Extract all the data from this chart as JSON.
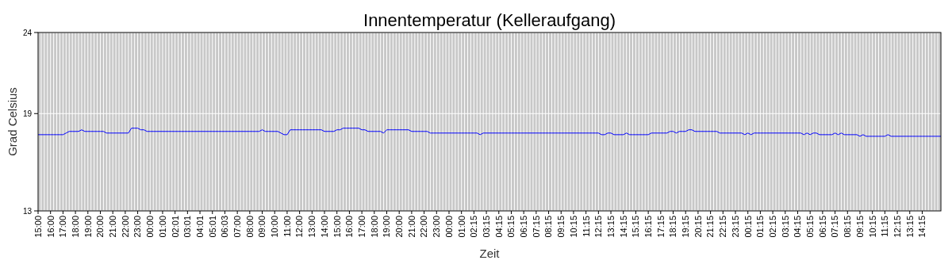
{
  "chart_data": {
    "type": "line",
    "title": "Innentemperatur (Kelleraufgang)",
    "xlabel": "Zeit",
    "ylabel": "Grad Celsius",
    "ylim": [
      13,
      24
    ],
    "yticks": [
      13,
      19,
      24
    ],
    "categories": [
      "15:00",
      null,
      null,
      null,
      "16:00",
      null,
      null,
      null,
      "17:00",
      null,
      null,
      null,
      "18:00",
      null,
      null,
      null,
      "19:00",
      null,
      null,
      null,
      "20:00",
      null,
      null,
      null,
      "21:00",
      null,
      null,
      null,
      "22:00",
      null,
      null,
      null,
      "23:00",
      null,
      null,
      null,
      "00:00",
      null,
      null,
      null,
      "01:00",
      null,
      null,
      null,
      "02:01",
      null,
      null,
      null,
      "03:01",
      null,
      null,
      null,
      "04:01",
      null,
      null,
      null,
      "05:01",
      null,
      null,
      null,
      "06:03",
      null,
      null,
      null,
      "07:00",
      null,
      null,
      null,
      "08:00",
      null,
      null,
      null,
      "09:00",
      null,
      null,
      null,
      "10:00",
      null,
      null,
      null,
      "11:00",
      null,
      null,
      null,
      "12:00",
      null,
      null,
      null,
      "13:00",
      null,
      null,
      null,
      "14:00",
      null,
      null,
      null,
      "15:00",
      null,
      null,
      null,
      "16:00",
      null,
      null,
      null,
      "17:00",
      null,
      null,
      null,
      "18:00",
      null,
      null,
      null,
      "19:00",
      null,
      null,
      null,
      "20:00",
      null,
      null,
      null,
      "21:00",
      null,
      null,
      null,
      "22:00",
      null,
      null,
      null,
      "23:00",
      null,
      null,
      null,
      "00:00",
      null,
      null,
      null,
      "01:00",
      null,
      null,
      null,
      "02:15",
      null,
      null,
      null,
      "03:15",
      null,
      null,
      null,
      "04:15",
      null,
      null,
      null,
      "05:15",
      null,
      null,
      null,
      "06:15",
      null,
      null,
      null,
      "07:15",
      null,
      null,
      null,
      "08:15",
      null,
      null,
      null,
      "09:15",
      null,
      null,
      null,
      "10:15",
      null,
      null,
      null,
      "11:15",
      null,
      null,
      null,
      "12:15",
      null,
      null,
      null,
      "13:15",
      null,
      null,
      null,
      "14:15",
      null,
      null,
      null,
      "15:15",
      null,
      null,
      null,
      "16:15",
      null,
      null,
      null,
      "17:15",
      null,
      null,
      null,
      "18:15",
      null,
      null,
      null,
      "19:15",
      null,
      null,
      null,
      "20:15",
      null,
      null,
      null,
      "21:15",
      null,
      null,
      null,
      "22:15",
      null,
      null,
      null,
      "23:15",
      null,
      null,
      null,
      "00:15",
      null,
      null,
      null,
      "01:15",
      null,
      null,
      null,
      "02:15",
      null,
      null,
      null,
      "03:15",
      null,
      null,
      null,
      "04:15",
      null,
      null,
      null,
      "05:15",
      null,
      null,
      null,
      "06:15",
      null,
      null,
      null,
      "07:15",
      null,
      null,
      null,
      "08:15",
      null,
      null,
      null,
      "09:15",
      null,
      null,
      null,
      "10:15",
      null,
      null,
      null,
      "11:15",
      null,
      null,
      null,
      "12:15",
      null,
      null,
      null,
      "13:15",
      null,
      null,
      null,
      "14:15",
      null,
      null,
      null,
      null,
      null,
      null
    ],
    "grid": true,
    "marker": "none",
    "line_style": "solid",
    "series": [
      {
        "color": "#0000ff",
        "values": [
          17.7,
          17.7,
          17.7,
          17.7,
          17.7,
          17.7,
          17.7,
          17.7,
          17.7,
          17.8,
          17.9,
          17.9,
          17.9,
          17.9,
          18.0,
          17.9,
          17.9,
          17.9,
          17.9,
          17.9,
          17.9,
          17.9,
          17.8,
          17.8,
          17.8,
          17.8,
          17.8,
          17.8,
          17.8,
          17.8,
          18.1,
          18.1,
          18.1,
          18.0,
          18.0,
          17.9,
          17.9,
          17.9,
          17.9,
          17.9,
          17.9,
          17.9,
          17.9,
          17.9,
          17.9,
          17.9,
          17.9,
          17.9,
          17.9,
          17.9,
          17.9,
          17.9,
          17.9,
          17.9,
          17.9,
          17.9,
          17.9,
          17.9,
          17.9,
          17.9,
          17.9,
          17.9,
          17.9,
          17.9,
          17.9,
          17.9,
          17.9,
          17.9,
          17.9,
          17.9,
          17.9,
          17.9,
          18.0,
          17.9,
          17.9,
          17.9,
          17.9,
          17.9,
          17.8,
          17.7,
          17.7,
          18.0,
          18.0,
          18.0,
          18.0,
          18.0,
          18.0,
          18.0,
          18.0,
          18.0,
          18.0,
          18.0,
          17.9,
          17.9,
          17.9,
          17.9,
          18.0,
          18.0,
          18.1,
          18.1,
          18.1,
          18.1,
          18.1,
          18.1,
          18.0,
          18.0,
          17.9,
          17.9,
          17.9,
          17.9,
          17.9,
          17.8,
          18.0,
          18.0,
          18.0,
          18.0,
          18.0,
          18.0,
          18.0,
          18.0,
          17.9,
          17.9,
          17.9,
          17.9,
          17.9,
          17.9,
          17.8,
          17.8,
          17.8,
          17.8,
          17.8,
          17.8,
          17.8,
          17.8,
          17.8,
          17.8,
          17.8,
          17.8,
          17.8,
          17.8,
          17.8,
          17.8,
          17.7,
          17.8,
          17.8,
          17.8,
          17.8,
          17.8,
          17.8,
          17.8,
          17.8,
          17.8,
          17.8,
          17.8,
          17.8,
          17.8,
          17.8,
          17.8,
          17.8,
          17.8,
          17.8,
          17.8,
          17.8,
          17.8,
          17.8,
          17.8,
          17.8,
          17.8,
          17.8,
          17.8,
          17.8,
          17.8,
          17.8,
          17.8,
          17.8,
          17.8,
          17.8,
          17.8,
          17.8,
          17.8,
          17.8,
          17.7,
          17.7,
          17.8,
          17.8,
          17.7,
          17.7,
          17.7,
          17.7,
          17.8,
          17.7,
          17.7,
          17.7,
          17.7,
          17.7,
          17.7,
          17.7,
          17.8,
          17.8,
          17.8,
          17.8,
          17.8,
          17.8,
          17.9,
          17.9,
          17.8,
          17.9,
          17.9,
          17.9,
          18.0,
          18.0,
          17.9,
          17.9,
          17.9,
          17.9,
          17.9,
          17.9,
          17.9,
          17.9,
          17.8,
          17.8,
          17.8,
          17.8,
          17.8,
          17.8,
          17.8,
          17.8,
          17.7,
          17.8,
          17.7,
          17.8,
          17.8,
          17.8,
          17.8,
          17.8,
          17.8,
          17.8,
          17.8,
          17.8,
          17.8,
          17.8,
          17.8,
          17.8,
          17.8,
          17.8,
          17.8,
          17.7,
          17.8,
          17.7,
          17.8,
          17.8,
          17.7,
          17.7,
          17.7,
          17.7,
          17.7,
          17.8,
          17.7,
          17.8,
          17.7,
          17.7,
          17.7,
          17.7,
          17.7,
          17.6,
          17.7,
          17.6,
          17.6,
          17.6,
          17.6,
          17.6,
          17.6,
          17.6,
          17.7,
          17.6,
          17.6,
          17.6,
          17.6,
          17.6,
          17.6,
          17.6,
          17.6,
          17.6,
          17.6,
          17.6,
          17.6,
          17.6,
          17.6,
          17.6,
          17.6,
          17.6
        ]
      }
    ]
  }
}
